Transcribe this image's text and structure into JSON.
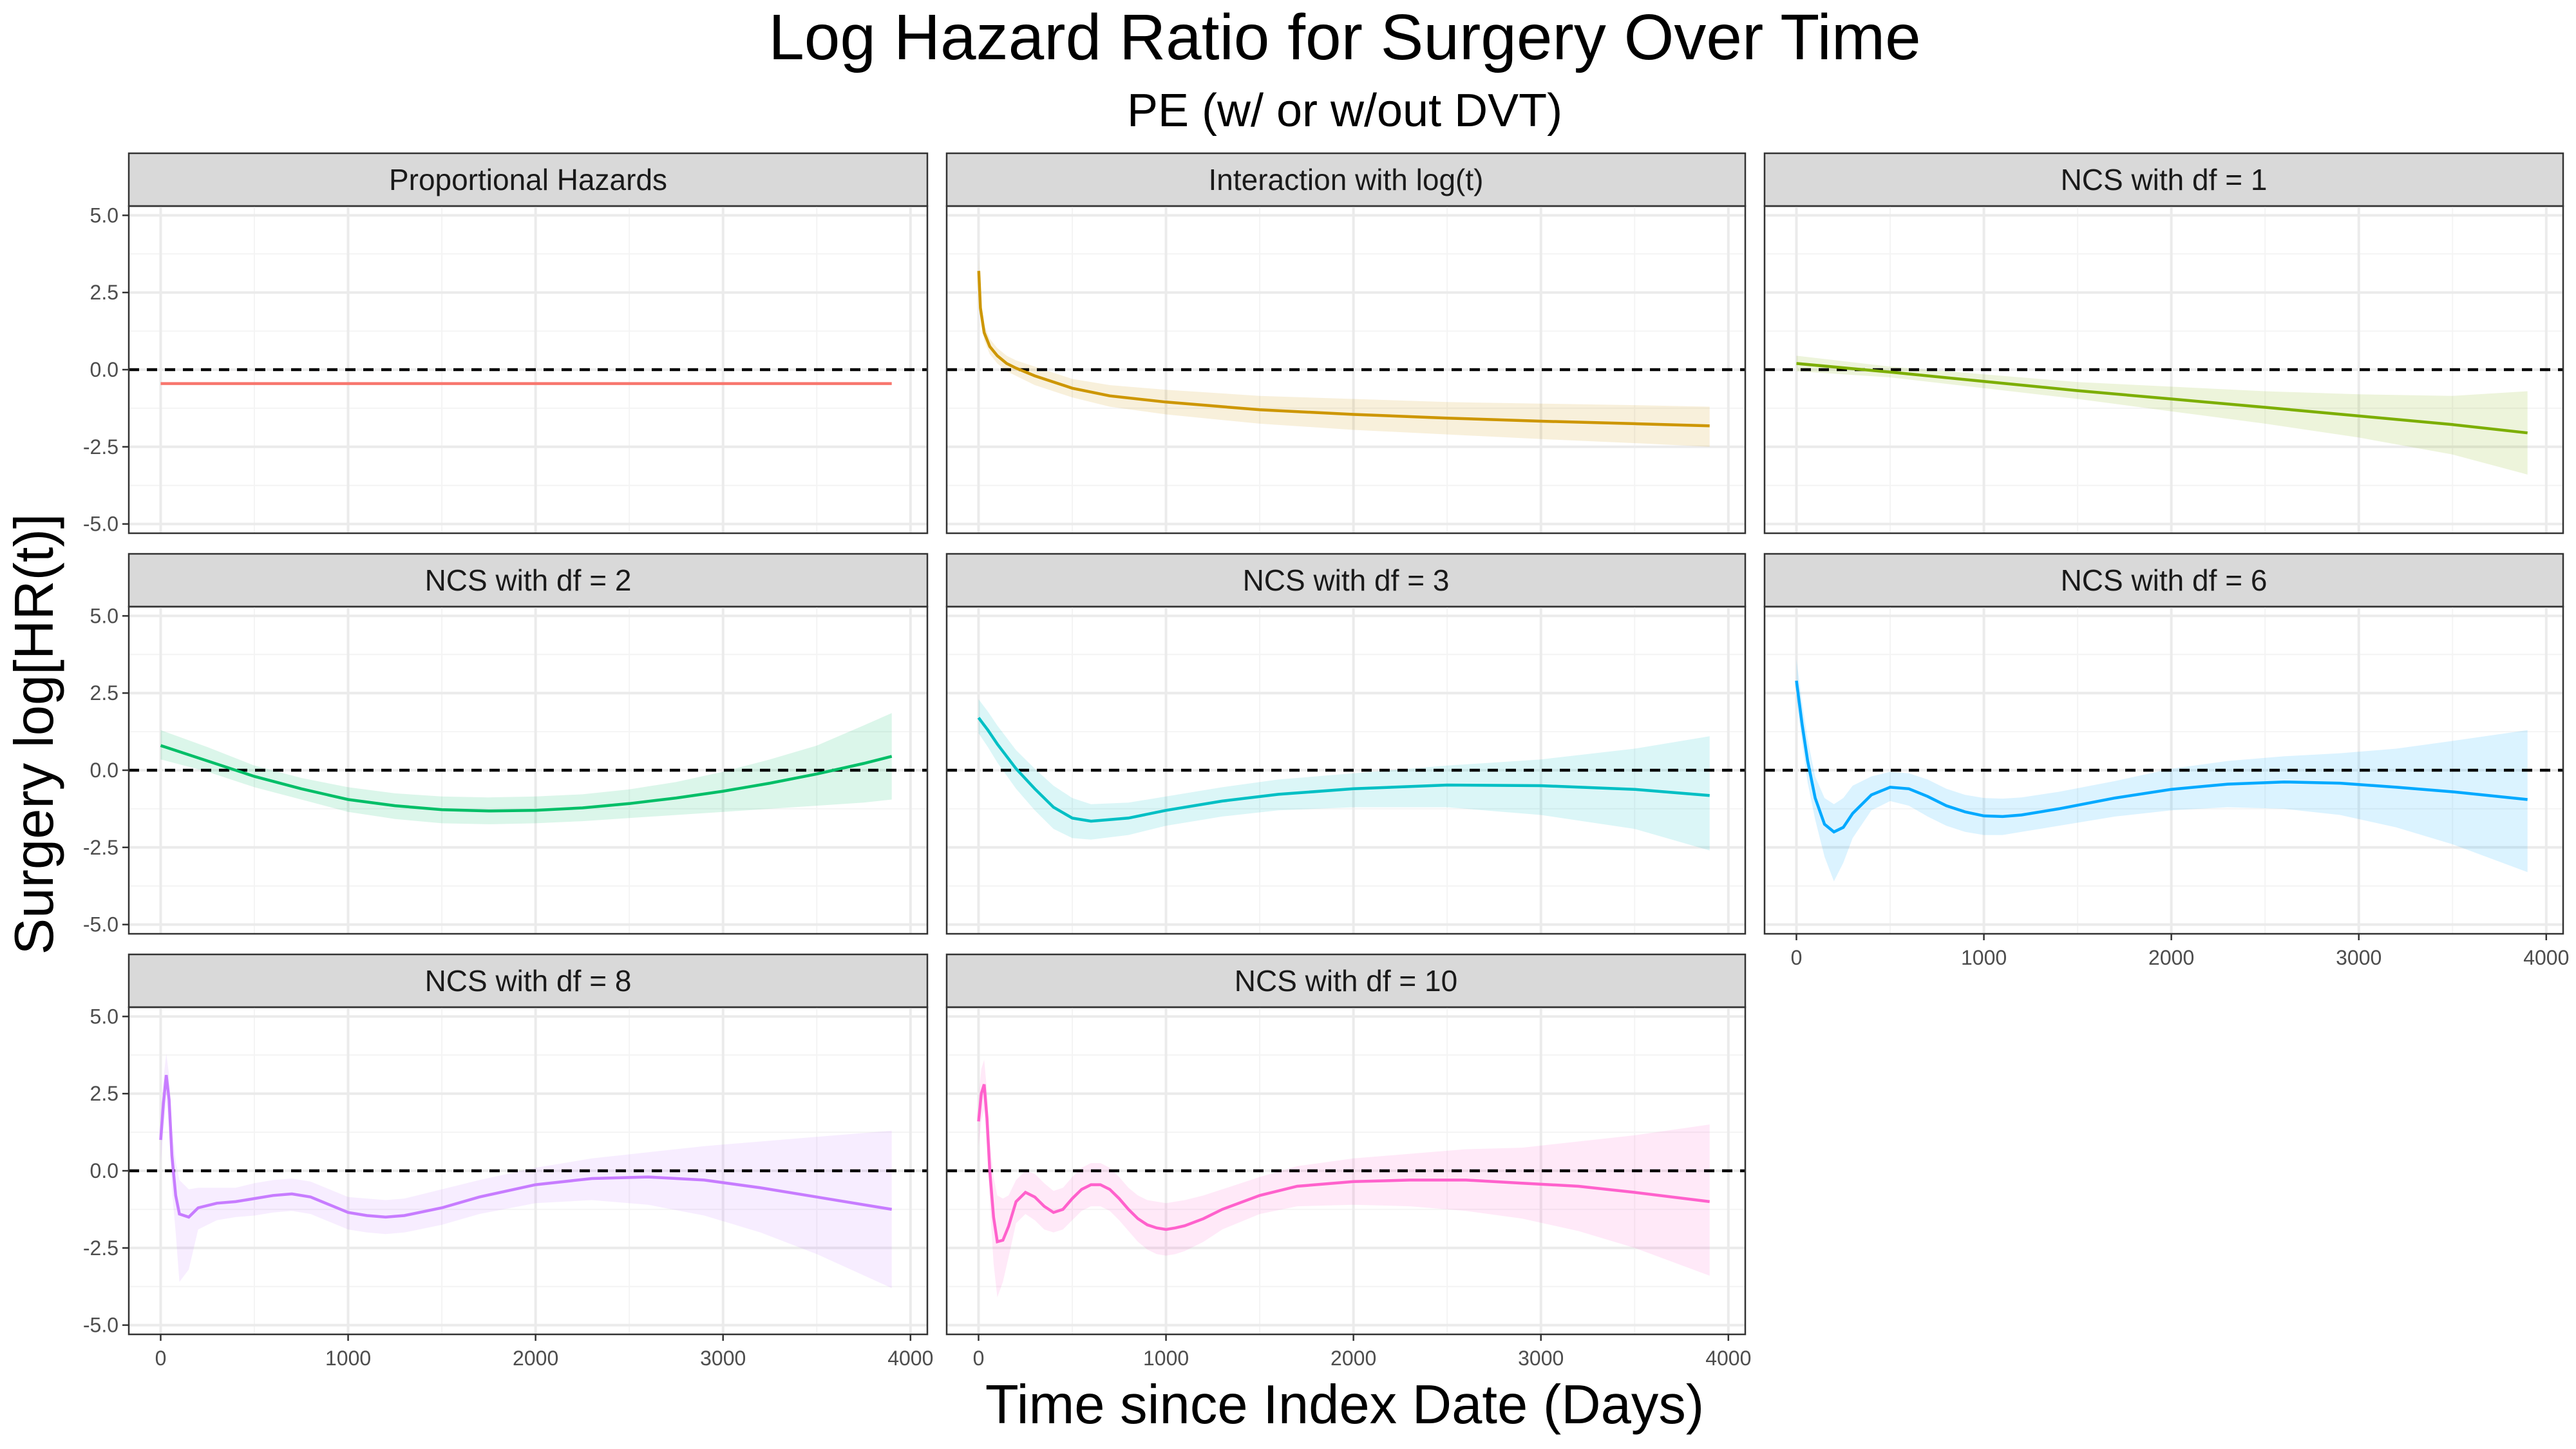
{
  "chart_data": {
    "type": "line",
    "title": "Log Hazard Ratio for Surgery Over Time",
    "subtitle": "PE (w/ or w/out DVT)",
    "xlabel": "Time since Index Date (Days)",
    "ylabel": "Surgery log[HR(t)]",
    "xlim": [
      -170,
      4090
    ],
    "ylim": [
      -5.3,
      5.3
    ],
    "xticks": [
      0,
      1000,
      2000,
      3000,
      4000
    ],
    "xtick_labels": [
      "0",
      "1000",
      "2000",
      "3000",
      "4000"
    ],
    "yticks": [
      5,
      2.5,
      0,
      -2.5,
      -5
    ],
    "ytick_labels": [
      "5.0",
      "2.5",
      "0.0",
      "-2.5",
      "-5.0"
    ],
    "reference_line": 0,
    "grid": true,
    "legend": "none",
    "panels": [
      {
        "name": "Proportional Hazards",
        "color": "#F8766D",
        "x": [
          0,
          3900
        ],
        "y": [
          -0.45,
          -0.45
        ],
        "lower": [
          -0.45,
          -0.45
        ],
        "upper": [
          -0.45,
          -0.45
        ]
      },
      {
        "name": "Interaction with log(t)",
        "color": "#CD9600",
        "x": [
          1,
          10,
          30,
          60,
          100,
          150,
          200,
          300,
          500,
          700,
          1000,
          1500,
          2000,
          2500,
          3000,
          3500,
          3900
        ],
        "y": [
          3.2,
          2.0,
          1.2,
          0.75,
          0.45,
          0.2,
          0.05,
          -0.2,
          -0.6,
          -0.85,
          -1.05,
          -1.3,
          -1.45,
          -1.57,
          -1.67,
          -1.75,
          -1.82
        ],
        "lower": [
          2.7,
          1.7,
          0.95,
          0.5,
          0.2,
          -0.05,
          -0.2,
          -0.5,
          -0.9,
          -1.2,
          -1.45,
          -1.75,
          -1.95,
          -2.1,
          -2.25,
          -2.38,
          -2.5
        ],
        "upper": [
          3.7,
          2.3,
          1.45,
          1.0,
          0.7,
          0.45,
          0.3,
          0.1,
          -0.3,
          -0.5,
          -0.65,
          -0.85,
          -0.95,
          -1.05,
          -1.1,
          -1.15,
          -1.2
        ]
      },
      {
        "name": "NCS with df = 1",
        "color": "#7CAE00",
        "x": [
          0,
          500,
          1000,
          1500,
          2000,
          2500,
          3000,
          3500,
          3900
        ],
        "y": [
          0.2,
          -0.08,
          -0.38,
          -0.68,
          -0.95,
          -1.22,
          -1.5,
          -1.78,
          -2.05
        ],
        "lower": [
          -0.05,
          -0.25,
          -0.6,
          -0.95,
          -1.35,
          -1.75,
          -2.2,
          -2.75,
          -3.4
        ],
        "upper": [
          0.45,
          0.1,
          -0.15,
          -0.4,
          -0.55,
          -0.7,
          -0.8,
          -0.85,
          -0.7
        ]
      },
      {
        "name": "NCS with df = 2",
        "color": "#00BE67",
        "x": [
          0,
          250,
          500,
          750,
          1000,
          1250,
          1500,
          1750,
          2000,
          2250,
          2500,
          2750,
          3000,
          3250,
          3500,
          3750,
          3900
        ],
        "y": [
          0.8,
          0.3,
          -0.2,
          -0.6,
          -0.95,
          -1.15,
          -1.28,
          -1.32,
          -1.3,
          -1.22,
          -1.08,
          -0.9,
          -0.68,
          -0.42,
          -0.12,
          0.22,
          0.45
        ],
        "lower": [
          0.35,
          -0.05,
          -0.55,
          -0.95,
          -1.35,
          -1.58,
          -1.72,
          -1.75,
          -1.72,
          -1.65,
          -1.55,
          -1.45,
          -1.35,
          -1.25,
          -1.15,
          -1.05,
          -0.95
        ],
        "upper": [
          1.3,
          0.75,
          0.15,
          -0.25,
          -0.55,
          -0.75,
          -0.85,
          -0.88,
          -0.85,
          -0.78,
          -0.62,
          -0.38,
          -0.05,
          0.35,
          0.8,
          1.45,
          1.85
        ]
      },
      {
        "name": "NCS with df = 3",
        "color": "#00BFC4",
        "x": [
          0,
          50,
          100,
          200,
          300,
          400,
          500,
          600,
          800,
          1000,
          1300,
          1600,
          2000,
          2500,
          3000,
          3500,
          3900
        ],
        "y": [
          1.7,
          1.3,
          0.85,
          0.05,
          -0.6,
          -1.2,
          -1.55,
          -1.65,
          -1.55,
          -1.3,
          -1.0,
          -0.78,
          -0.6,
          -0.48,
          -0.5,
          -0.62,
          -0.82
        ],
        "lower": [
          1.2,
          0.75,
          0.25,
          -0.6,
          -1.3,
          -1.9,
          -2.2,
          -2.25,
          -2.1,
          -1.8,
          -1.5,
          -1.3,
          -1.2,
          -1.2,
          -1.45,
          -1.9,
          -2.6
        ],
        "upper": [
          2.3,
          1.9,
          1.45,
          0.65,
          0.05,
          -0.5,
          -0.9,
          -1.1,
          -1.05,
          -0.85,
          -0.55,
          -0.3,
          -0.1,
          0.15,
          0.35,
          0.7,
          1.1
        ]
      },
      {
        "name": "NCS with df = 6",
        "color": "#00A9FF",
        "x": [
          0,
          30,
          60,
          100,
          150,
          200,
          250,
          300,
          400,
          500,
          600,
          700,
          800,
          900,
          1000,
          1100,
          1200,
          1400,
          1700,
          2000,
          2300,
          2600,
          2900,
          3200,
          3500,
          3900
        ],
        "y": [
          2.9,
          1.5,
          0.3,
          -0.9,
          -1.75,
          -2.0,
          -1.85,
          -1.4,
          -0.8,
          -0.55,
          -0.6,
          -0.85,
          -1.15,
          -1.35,
          -1.48,
          -1.5,
          -1.45,
          -1.25,
          -0.9,
          -0.62,
          -0.45,
          -0.38,
          -0.42,
          -0.55,
          -0.7,
          -0.95
        ],
        "lower": [
          2.3,
          0.9,
          -0.4,
          -1.6,
          -2.8,
          -3.6,
          -3.0,
          -2.2,
          -1.3,
          -1.0,
          -1.15,
          -1.5,
          -1.8,
          -2.0,
          -2.1,
          -2.1,
          -2.0,
          -1.8,
          -1.5,
          -1.3,
          -1.2,
          -1.25,
          -1.45,
          -1.85,
          -2.4,
          -3.3
        ],
        "upper": [
          3.6,
          2.2,
          1.0,
          -0.2,
          -0.9,
          -1.1,
          -0.9,
          -0.5,
          -0.2,
          -0.05,
          -0.1,
          -0.3,
          -0.6,
          -0.8,
          -0.9,
          -0.92,
          -0.88,
          -0.7,
          -0.35,
          0.05,
          0.3,
          0.45,
          0.55,
          0.7,
          0.95,
          1.3
        ]
      },
      {
        "name": "NCS with df = 8",
        "color": "#C77CFF",
        "x": [
          0,
          15,
          30,
          45,
          60,
          80,
          100,
          150,
          200,
          300,
          400,
          500,
          600,
          700,
          800,
          900,
          1000,
          1100,
          1200,
          1300,
          1500,
          1700,
          2000,
          2300,
          2600,
          2900,
          3200,
          3500,
          3900
        ],
        "y": [
          1.0,
          2.2,
          3.1,
          2.3,
          0.5,
          -0.8,
          -1.4,
          -1.5,
          -1.2,
          -1.05,
          -1.0,
          -0.9,
          -0.8,
          -0.75,
          -0.85,
          -1.1,
          -1.35,
          -1.45,
          -1.5,
          -1.45,
          -1.2,
          -0.85,
          -0.45,
          -0.25,
          -0.2,
          -0.3,
          -0.55,
          -0.85,
          -1.25
        ],
        "lower": [
          0.2,
          1.3,
          2.3,
          1.4,
          -0.6,
          -2.0,
          -3.6,
          -3.2,
          -1.9,
          -1.6,
          -1.5,
          -1.45,
          -1.35,
          -1.3,
          -1.4,
          -1.65,
          -1.9,
          -2.0,
          -2.05,
          -2.0,
          -1.75,
          -1.4,
          -1.05,
          -0.95,
          -1.1,
          -1.45,
          -2.0,
          -2.7,
          -3.8
        ],
        "upper": [
          1.8,
          3.0,
          3.8,
          3.1,
          1.4,
          0.3,
          -0.3,
          -0.6,
          -0.55,
          -0.55,
          -0.55,
          -0.4,
          -0.3,
          -0.25,
          -0.35,
          -0.6,
          -0.85,
          -0.9,
          -0.95,
          -0.9,
          -0.6,
          -0.3,
          0.1,
          0.4,
          0.6,
          0.8,
          0.95,
          1.1,
          1.3
        ]
      },
      {
        "name": "NCS with df = 10",
        "color": "#FF61CC",
        "x": [
          0,
          15,
          30,
          45,
          60,
          80,
          100,
          130,
          160,
          200,
          250,
          300,
          350,
          400,
          450,
          500,
          550,
          600,
          650,
          700,
          750,
          800,
          850,
          900,
          950,
          1000,
          1050,
          1100,
          1200,
          1300,
          1500,
          1700,
          2000,
          2300,
          2600,
          2900,
          3200,
          3500,
          3900
        ],
        "y": [
          1.6,
          2.5,
          2.8,
          1.7,
          0.0,
          -1.5,
          -2.3,
          -2.25,
          -1.8,
          -1.0,
          -0.7,
          -0.85,
          -1.15,
          -1.35,
          -1.25,
          -0.9,
          -0.6,
          -0.45,
          -0.45,
          -0.6,
          -0.9,
          -1.25,
          -1.55,
          -1.75,
          -1.85,
          -1.9,
          -1.85,
          -1.78,
          -1.55,
          -1.25,
          -0.8,
          -0.5,
          -0.35,
          -0.3,
          -0.3,
          -0.4,
          -0.5,
          -0.7,
          -1.0
        ],
        "lower": [
          0.8,
          1.6,
          2.0,
          0.8,
          -1.0,
          -3.0,
          -4.1,
          -3.6,
          -2.8,
          -1.7,
          -1.4,
          -1.6,
          -1.9,
          -2.0,
          -1.9,
          -1.6,
          -1.3,
          -1.15,
          -1.15,
          -1.3,
          -1.6,
          -1.95,
          -2.3,
          -2.55,
          -2.7,
          -2.75,
          -2.7,
          -2.6,
          -2.3,
          -1.9,
          -1.4,
          -1.15,
          -1.1,
          -1.15,
          -1.3,
          -1.55,
          -1.95,
          -2.5,
          -3.4
        ],
        "upper": [
          2.4,
          3.3,
          3.6,
          2.6,
          1.0,
          -0.2,
          -0.8,
          -0.9,
          -0.8,
          -0.3,
          0.0,
          -0.1,
          -0.4,
          -0.65,
          -0.55,
          -0.2,
          0.1,
          0.25,
          0.25,
          0.1,
          -0.2,
          -0.55,
          -0.8,
          -0.95,
          -1.0,
          -1.05,
          -1.0,
          -0.95,
          -0.8,
          -0.6,
          -0.2,
          0.15,
          0.4,
          0.55,
          0.7,
          0.75,
          0.95,
          1.15,
          1.5
        ]
      }
    ]
  }
}
